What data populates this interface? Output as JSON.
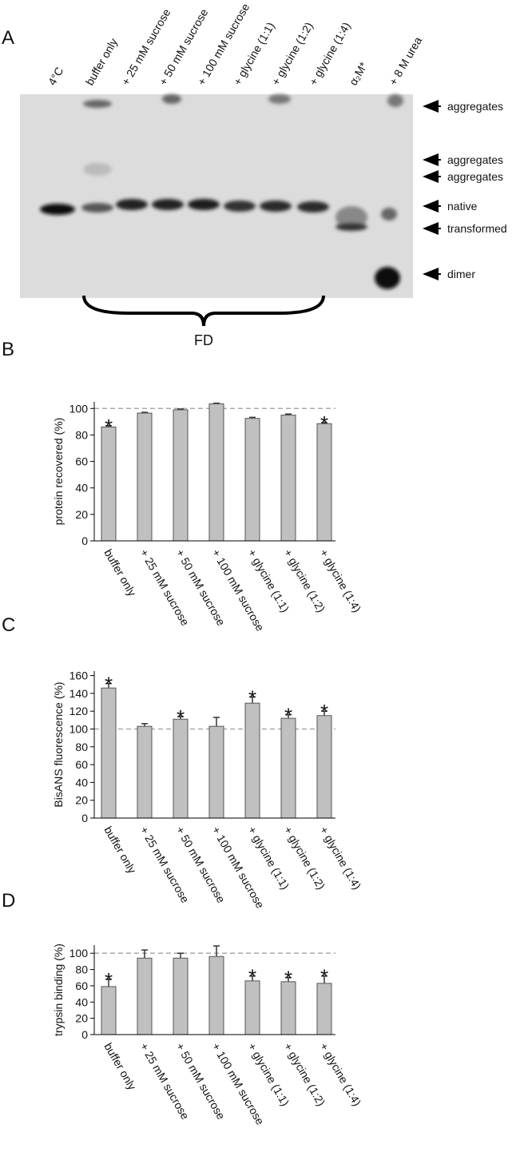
{
  "gel": {
    "panel": "A",
    "lanes": [
      "4°C",
      "buffer only",
      "+ 25 mM sucrose",
      "+ 50 mM sucrose",
      "+ 100 mM sucrose",
      "+ glycine (1:1)",
      "+ glycine (1:2)",
      "+ glycine (1:4)",
      "α₂M*",
      "+ 8 M urea"
    ],
    "band_labels": [
      "aggregates",
      "aggregates",
      "aggregates",
      "native",
      "transformed",
      "dimer"
    ],
    "bracket_label": "FD"
  },
  "chart_data": [
    {
      "type": "bar",
      "panel": "B",
      "y_label": "protein recovered (%)",
      "categories": [
        "buffer only",
        "+ 25 mM sucrose",
        "+ 50 mM sucrose",
        "+ 100 mM sucrose",
        "+ glycine (1:1)",
        "+ glycine (1:2)",
        "+ glycine (1:4)"
      ],
      "values": [
        86,
        96.5,
        99,
        103.5,
        92.5,
        95,
        88.5
      ],
      "errors": [
        1,
        0.6,
        0.6,
        0.5,
        0.8,
        0.8,
        0.8
      ],
      "significant": [
        true,
        false,
        false,
        false,
        false,
        false,
        true
      ],
      "marker": "*",
      "reference_line": 100,
      "color": "#c0c0c0",
      "ylim": [
        0,
        105
      ],
      "yticks": [
        0,
        20,
        40,
        60,
        80,
        100
      ]
    },
    {
      "type": "bar",
      "panel": "C",
      "y_label": "BisANS fluorescence (%)",
      "categories": [
        "buffer only",
        "+ 25 mM sucrose",
        "+ 50 mM sucrose",
        "+ 100 mM sucrose",
        "+ glycine (1:1)",
        "+ glycine (1:2)",
        "+ glycine (1:4)"
      ],
      "values": [
        146,
        103,
        111,
        103,
        129,
        112,
        115
      ],
      "errors": [
        5,
        3,
        3,
        10,
        7,
        4,
        5
      ],
      "significant": [
        true,
        false,
        true,
        false,
        true,
        true,
        true
      ],
      "marker": "*",
      "reference_line": 100,
      "color": "#c0c0c0",
      "ylim": [
        0,
        165
      ],
      "yticks": [
        0,
        20,
        40,
        60,
        80,
        100,
        120,
        140,
        160
      ]
    },
    {
      "type": "bar",
      "panel": "D",
      "y_label": "trypsin binding (%)",
      "categories": [
        "buffer only",
        "+ 25 mM sucrose",
        "+ 50 mM sucrose",
        "+ 100 mM sucrose",
        "+ glycine (1:1)",
        "+ glycine (1:2)",
        "+ glycine (1:4)"
      ],
      "values": [
        59,
        94,
        94,
        96,
        66,
        65,
        63
      ],
      "errors": [
        9,
        10,
        6,
        13,
        6,
        5,
        9
      ],
      "significant": [
        true,
        false,
        false,
        false,
        true,
        true,
        true
      ],
      "marker": "*",
      "reference_line": 100,
      "color": "#c0c0c0",
      "ylim": [
        0,
        110
      ],
      "yticks": [
        0,
        20,
        40,
        60,
        80,
        100
      ]
    }
  ]
}
